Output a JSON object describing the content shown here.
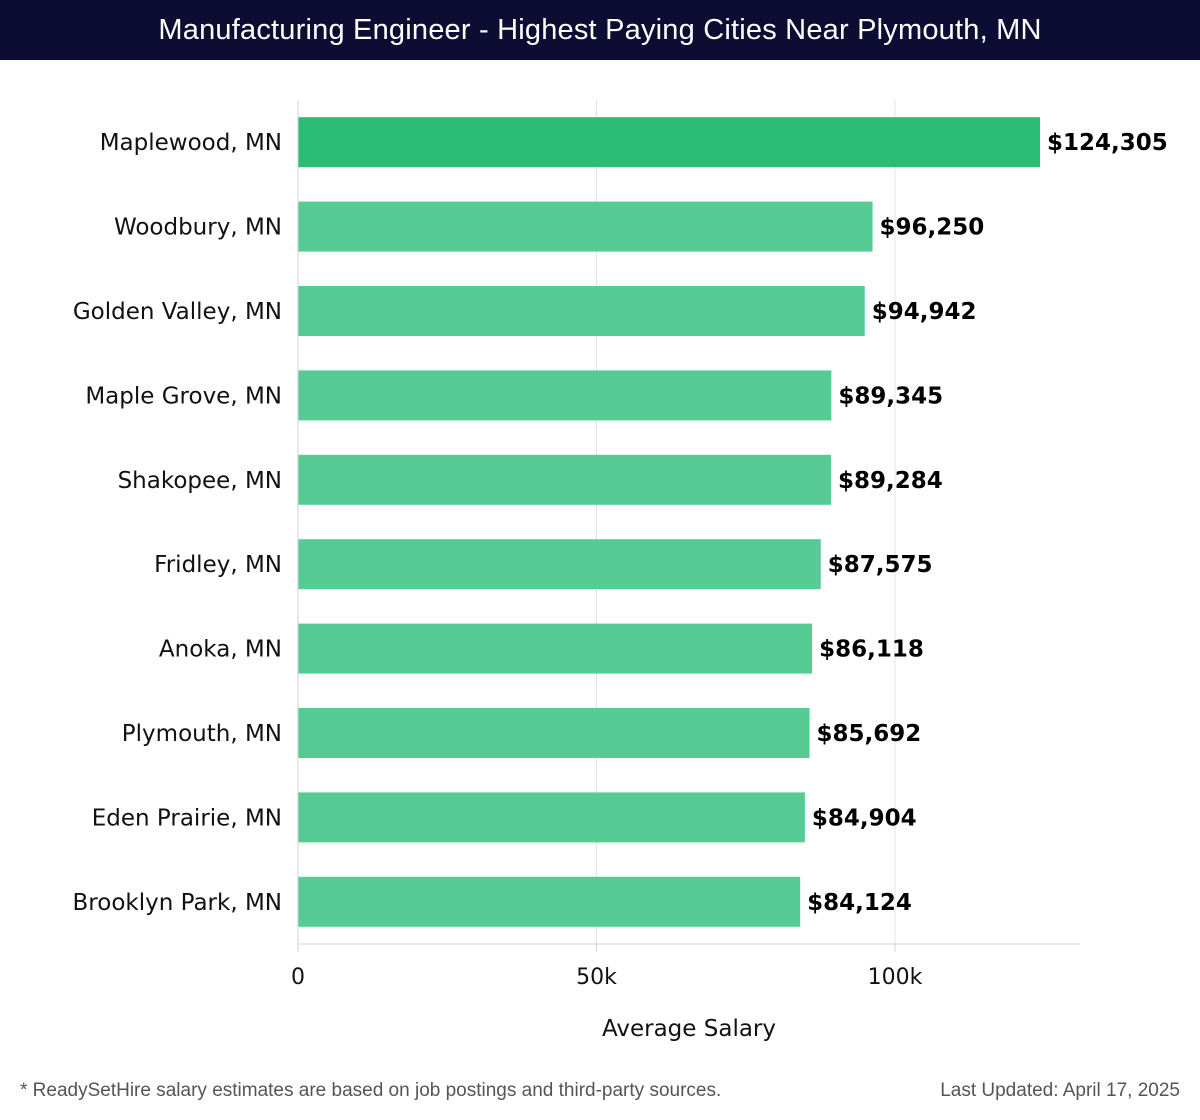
{
  "header": {
    "title": "Manufacturing Engineer - Highest Paying Cities Near Plymouth, MN"
  },
  "chart_data": {
    "type": "bar",
    "orientation": "horizontal",
    "title": "Manufacturing Engineer - Highest Paying Cities Near Plymouth, MN",
    "categories": [
      "Maplewood, MN",
      "Woodbury, MN",
      "Golden Valley, MN",
      "Maple Grove, MN",
      "Shakopee, MN",
      "Fridley, MN",
      "Anoka, MN",
      "Plymouth, MN",
      "Eden Prairie, MN",
      "Brooklyn Park, MN"
    ],
    "values": [
      124305,
      96250,
      94942,
      89345,
      89284,
      87575,
      86118,
      85692,
      84904,
      84124
    ],
    "value_labels": [
      "$124,305",
      "$96,250",
      "$94,942",
      "$89,345",
      "$89,284",
      "$87,575",
      "$86,118",
      "$85,692",
      "$84,904",
      "$84,124"
    ],
    "xlabel": "Average Salary",
    "ylabel": "",
    "xlim": [
      0,
      131000
    ],
    "xticks": [
      0,
      50000,
      100000
    ],
    "xtick_labels": [
      "0",
      "50k",
      "100k"
    ],
    "grid": true,
    "colors": {
      "highlight": "#2bbd74",
      "bar": "#56cc94",
      "grid": "#e2e2e2",
      "axis": "#d0d0d0"
    }
  },
  "footer": {
    "note": "* ReadySetHire salary estimates are based on job postings and third-party sources.",
    "updated": "Last Updated: April 17, 2025"
  }
}
